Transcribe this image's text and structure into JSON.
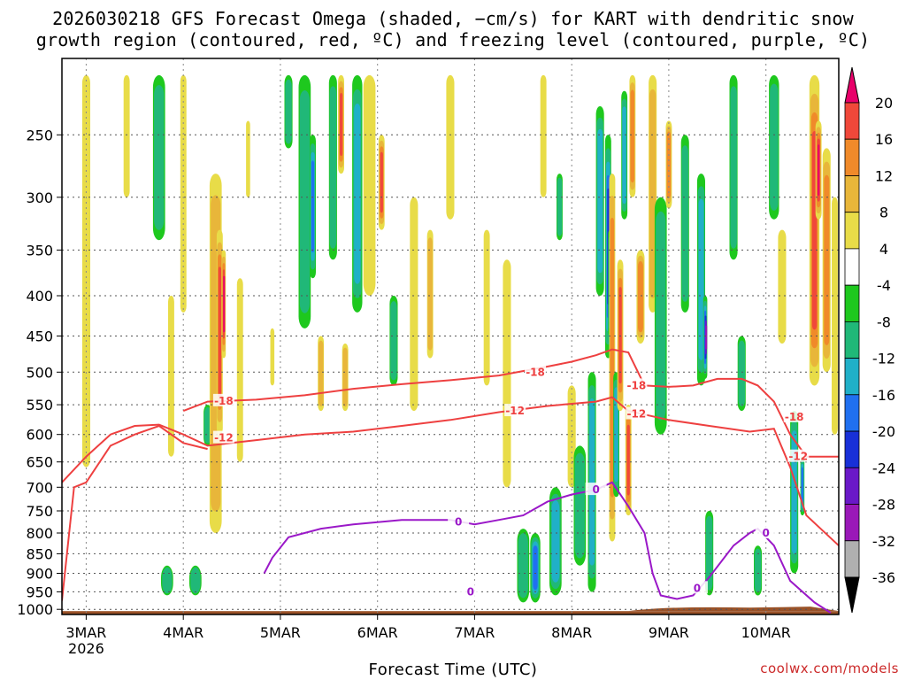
{
  "title": {
    "line1": "2026030218 GFS Forecast Omega (shaded, −cm/s) for KART with dendritic snow",
    "line2": "growth region (contoured, red, ºC) and freezing level (contoured, purple, ºC)"
  },
  "footer": {
    "xlabel": "Forecast Time (UTC)",
    "credit": "coolwx.com/models"
  },
  "chart_data": {
    "type": "heatmap",
    "title": "2026030218 GFS Forecast Omega (shaded, −cm/s) for KART with dendritic snow growth region (contoured, red, ºC) and freezing level (contoured, purple, ºC)",
    "xlabel": "Forecast Time (UTC)",
    "ylabel": "",
    "x_ticks": [
      "3MAR",
      "4MAR",
      "5MAR",
      "6MAR",
      "7MAR",
      "8MAR",
      "9MAR",
      "10MAR"
    ],
    "x_tick_year": "2026",
    "y_ticks": [
      250,
      300,
      350,
      400,
      450,
      500,
      550,
      600,
      650,
      700,
      750,
      800,
      850,
      900,
      950,
      1000
    ],
    "y_axis": "pressure (hPa), inverted, log scale",
    "x_range_hours": [
      0,
      192
    ],
    "y_range": [
      200,
      1015
    ],
    "grid": true,
    "colorbar": {
      "levels": [
        20,
        16,
        12,
        8,
        4,
        -4,
        -8,
        -12,
        -16,
        -20,
        -24,
        -28,
        -32,
        -36
      ],
      "colors": [
        "#e8006a",
        "#f0483a",
        "#f08a2a",
        "#e8b63a",
        "#e8dc48",
        "#ffffff",
        "#1ec81e",
        "#20b878",
        "#20b0c8",
        "#2070f0",
        "#1830d8",
        "#6a18c8",
        "#9a18b8",
        "#b0b0b0",
        "#000000"
      ]
    },
    "contours": {
      "dgz_red": {
        "labels": [
          "-18",
          "-12"
        ],
        "color": "#ee4040"
      },
      "freezing_purple": {
        "labels": [
          "0"
        ],
        "color": "#9a18c8"
      }
    },
    "omega_blobs": [
      {
        "t": 6,
        "p1": 210,
        "p2": 660,
        "w": 2,
        "v": 4
      },
      {
        "t": 16,
        "p1": 210,
        "p2": 300,
        "w": 1.5,
        "v": 6
      },
      {
        "t": 24,
        "p1": 210,
        "p2": 340,
        "w": 3,
        "v": -8
      },
      {
        "t": 26,
        "p1": 880,
        "p2": 960,
        "w": 3,
        "v": -8
      },
      {
        "t": 27,
        "p1": 400,
        "p2": 640,
        "w": 1.5,
        "v": 6
      },
      {
        "t": 30,
        "p1": 210,
        "p2": 420,
        "w": 1.5,
        "v": 4
      },
      {
        "t": 33,
        "p1": 880,
        "p2": 960,
        "w": 3,
        "v": -8
      },
      {
        "t": 36,
        "p1": 550,
        "p2": 620,
        "w": 2,
        "v": -8
      },
      {
        "t": 38,
        "p1": 280,
        "p2": 800,
        "w": 3,
        "v": 8
      },
      {
        "t": 39,
        "p1": 330,
        "p2": 600,
        "w": 1.5,
        "v": 16
      },
      {
        "t": 40,
        "p1": 350,
        "p2": 480,
        "w": 1,
        "v": 20
      },
      {
        "t": 44,
        "p1": 380,
        "p2": 650,
        "w": 1.5,
        "v": 6
      },
      {
        "t": 46,
        "p1": 240,
        "p2": 300,
        "w": 1,
        "v": 6
      },
      {
        "t": 52,
        "p1": 440,
        "p2": 520,
        "w": 1,
        "v": 4
      },
      {
        "t": 56,
        "p1": 210,
        "p2": 260,
        "w": 2,
        "v": -8
      },
      {
        "t": 60,
        "p1": 210,
        "p2": 440,
        "w": 3,
        "v": -8
      },
      {
        "t": 62,
        "p1": 250,
        "p2": 380,
        "w": 1.5,
        "v": -16
      },
      {
        "t": 64,
        "p1": 450,
        "p2": 560,
        "w": 1.5,
        "v": 8
      },
      {
        "t": 67,
        "p1": 210,
        "p2": 360,
        "w": 2,
        "v": -8
      },
      {
        "t": 69,
        "p1": 210,
        "p2": 280,
        "w": 1.5,
        "v": 16
      },
      {
        "t": 70,
        "p1": 460,
        "p2": 560,
        "w": 1.5,
        "v": 8
      },
      {
        "t": 73,
        "p1": 210,
        "p2": 420,
        "w": 2.5,
        "v": -12
      },
      {
        "t": 76,
        "p1": 210,
        "p2": 400,
        "w": 3,
        "v": 6
      },
      {
        "t": 79,
        "p1": 250,
        "p2": 330,
        "w": 1.5,
        "v": 16
      },
      {
        "t": 82,
        "p1": 400,
        "p2": 520,
        "w": 2,
        "v": -8
      },
      {
        "t": 87,
        "p1": 300,
        "p2": 560,
        "w": 2,
        "v": 4
      },
      {
        "t": 91,
        "p1": 330,
        "p2": 480,
        "w": 1.5,
        "v": 8
      },
      {
        "t": 96,
        "p1": 210,
        "p2": 320,
        "w": 2,
        "v": 4
      },
      {
        "t": 105,
        "p1": 330,
        "p2": 520,
        "w": 1.5,
        "v": 6
      },
      {
        "t": 110,
        "p1": 360,
        "p2": 700,
        "w": 2,
        "v": 4
      },
      {
        "t": 114,
        "p1": 790,
        "p2": 980,
        "w": 3,
        "v": -8
      },
      {
        "t": 117,
        "p1": 800,
        "p2": 980,
        "w": 2.5,
        "v": -16
      },
      {
        "t": 119,
        "p1": 210,
        "p2": 300,
        "w": 1.5,
        "v": 6
      },
      {
        "t": 122,
        "p1": 700,
        "p2": 960,
        "w": 3,
        "v": -12
      },
      {
        "t": 123,
        "p1": 280,
        "p2": 340,
        "w": 1.5,
        "v": -8
      },
      {
        "t": 126,
        "p1": 520,
        "p2": 700,
        "w": 2,
        "v": 6
      },
      {
        "t": 128,
        "p1": 620,
        "p2": 880,
        "w": 3,
        "v": -8
      },
      {
        "t": 131,
        "p1": 500,
        "p2": 950,
        "w": 2,
        "v": -12
      },
      {
        "t": 133,
        "p1": 230,
        "p2": 400,
        "w": 2,
        "v": -12
      },
      {
        "t": 135,
        "p1": 250,
        "p2": 480,
        "w": 1.5,
        "v": -20
      },
      {
        "t": 135.5,
        "p1": 330,
        "p2": 450,
        "w": 1,
        "v": -28
      },
      {
        "t": 136,
        "p1": 280,
        "p2": 820,
        "w": 1.5,
        "v": 12
      },
      {
        "t": 137,
        "p1": 500,
        "p2": 720,
        "w": 1.5,
        "v": -12
      },
      {
        "t": 138,
        "p1": 360,
        "p2": 560,
        "w": 1.5,
        "v": 16
      },
      {
        "t": 139,
        "p1": 220,
        "p2": 320,
        "w": 1.5,
        "v": -12
      },
      {
        "t": 140,
        "p1": 550,
        "p2": 760,
        "w": 1.5,
        "v": 16
      },
      {
        "t": 141,
        "p1": 210,
        "p2": 300,
        "w": 1.5,
        "v": 12
      },
      {
        "t": 143,
        "p1": 350,
        "p2": 460,
        "w": 2,
        "v": 12
      },
      {
        "t": 146,
        "p1": 210,
        "p2": 420,
        "w": 2,
        "v": 8
      },
      {
        "t": 148,
        "p1": 300,
        "p2": 600,
        "w": 3,
        "v": -8
      },
      {
        "t": 150,
        "p1": 240,
        "p2": 310,
        "w": 1.5,
        "v": 12
      },
      {
        "t": 154,
        "p1": 250,
        "p2": 420,
        "w": 2,
        "v": -8
      },
      {
        "t": 158,
        "p1": 280,
        "p2": 520,
        "w": 2,
        "v": -12
      },
      {
        "t": 159,
        "p1": 400,
        "p2": 510,
        "w": 1,
        "v": -28
      },
      {
        "t": 160,
        "p1": 750,
        "p2": 960,
        "w": 2,
        "v": -8
      },
      {
        "t": 166,
        "p1": 210,
        "p2": 360,
        "w": 2,
        "v": -8
      },
      {
        "t": 168,
        "p1": 450,
        "p2": 560,
        "w": 2,
        "v": -8
      },
      {
        "t": 172,
        "p1": 830,
        "p2": 960,
        "w": 2,
        "v": -8
      },
      {
        "t": 176,
        "p1": 210,
        "p2": 320,
        "w": 2.5,
        "v": -8
      },
      {
        "t": 178,
        "p1": 330,
        "p2": 460,
        "w": 2,
        "v": 6
      },
      {
        "t": 181,
        "p1": 560,
        "p2": 900,
        "w": 2,
        "v": -12
      },
      {
        "t": 183,
        "p1": 640,
        "p2": 760,
        "w": 1,
        "v": -16
      },
      {
        "t": 186,
        "p1": 210,
        "p2": 520,
        "w": 2.5,
        "v": 16
      },
      {
        "t": 187,
        "p1": 240,
        "p2": 320,
        "w": 1.5,
        "v": 20
      },
      {
        "t": 189,
        "p1": 260,
        "p2": 500,
        "w": 2,
        "v": 12
      },
      {
        "t": 191,
        "p1": 300,
        "p2": 600,
        "w": 1.5,
        "v": 6
      }
    ],
    "dgz_minus18": [
      [
        0,
        null
      ],
      [
        30,
        560
      ],
      [
        36,
        545
      ],
      [
        48,
        542
      ],
      [
        60,
        535
      ],
      [
        72,
        525
      ],
      [
        84,
        518
      ],
      [
        96,
        512
      ],
      [
        108,
        505
      ],
      [
        120,
        492
      ],
      [
        126,
        485
      ],
      [
        132,
        476
      ],
      [
        136,
        468
      ],
      [
        140,
        472
      ],
      [
        144,
        520
      ],
      [
        150,
        522
      ],
      [
        156,
        520
      ],
      [
        162,
        510
      ],
      [
        168,
        510
      ],
      [
        172,
        520
      ],
      [
        176,
        545
      ],
      [
        180,
        600
      ],
      [
        184,
        640
      ],
      [
        192,
        640
      ]
    ],
    "dgz_minus12": [
      [
        0,
        690
      ],
      [
        6,
        640
      ],
      [
        12,
        600
      ],
      [
        18,
        585
      ],
      [
        24,
        583
      ],
      [
        30,
        600
      ],
      [
        36,
        620
      ],
      [
        48,
        610
      ],
      [
        60,
        600
      ],
      [
        72,
        595
      ],
      [
        84,
        585
      ],
      [
        96,
        575
      ],
      [
        108,
        562
      ],
      [
        120,
        552
      ],
      [
        132,
        545
      ],
      [
        136,
        538
      ],
      [
        140,
        560
      ],
      [
        150,
        575
      ],
      [
        160,
        585
      ],
      [
        170,
        595
      ],
      [
        176,
        590
      ],
      [
        180,
        660
      ],
      [
        184,
        760
      ],
      [
        192,
        830
      ]
    ],
    "dgz_lower": [
      [
        0,
        975
      ],
      [
        3,
        700
      ],
      [
        6,
        690
      ],
      [
        12,
        620
      ],
      [
        18,
        600
      ],
      [
        24,
        585
      ],
      [
        30,
        615
      ],
      [
        36,
        626
      ]
    ],
    "freezing_0": [
      [
        50,
        900
      ],
      [
        52,
        860
      ],
      [
        56,
        810
      ],
      [
        64,
        790
      ],
      [
        72,
        780
      ],
      [
        84,
        770
      ],
      [
        96,
        770
      ],
      [
        102,
        780
      ],
      [
        108,
        770
      ],
      [
        114,
        760
      ],
      [
        120,
        730
      ],
      [
        126,
        715
      ],
      [
        132,
        705
      ],
      [
        136,
        690
      ],
      [
        140,
        740
      ],
      [
        144,
        800
      ],
      [
        146,
        900
      ],
      [
        148,
        960
      ],
      [
        152,
        970
      ],
      [
        156,
        960
      ],
      [
        160,
        910
      ],
      [
        166,
        830
      ],
      [
        170,
        800
      ],
      [
        172,
        790
      ],
      [
        176,
        830
      ],
      [
        180,
        920
      ],
      [
        186,
        980
      ],
      [
        190,
        1010
      ]
    ]
  }
}
